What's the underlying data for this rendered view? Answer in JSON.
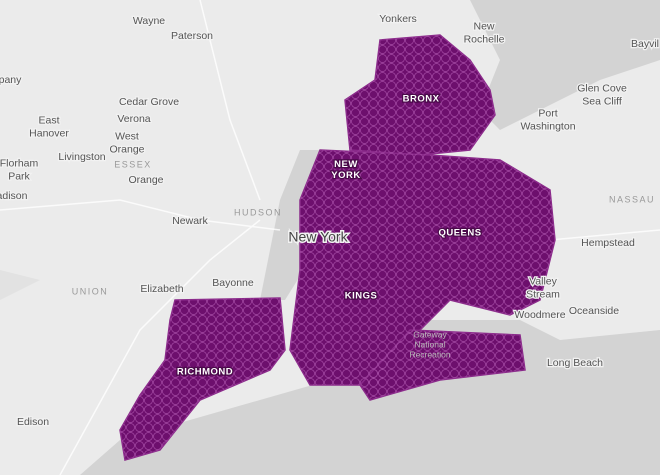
{
  "place_labels": [
    [
      "Wayne"
    ],
    [
      "Paterson"
    ],
    [
      "Yonkers"
    ],
    [
      "New",
      "Rochelle"
    ],
    [
      "Bayvil"
    ],
    [
      "pany"
    ],
    [
      "Cedar Grove"
    ],
    [
      "East",
      "Hanover"
    ],
    [
      "Verona"
    ],
    [
      "West",
      "Orange"
    ],
    [
      "Livingston"
    ],
    [
      "Florham",
      "Park"
    ],
    [
      "Orange"
    ],
    [
      "adison"
    ],
    [
      "Port",
      "Washington"
    ],
    [
      "Glen Cove",
      "Sea Cliff"
    ],
    [
      "Newark"
    ],
    [
      "Hempstead"
    ],
    [
      "Elizabeth"
    ],
    [
      "Bayonne"
    ],
    [
      "Valley",
      "Stream"
    ],
    [
      "Woodmere"
    ],
    [
      "Oceanside"
    ],
    [
      "Long Beach"
    ],
    [
      "Edison"
    ]
  ],
  "city_label": "New York",
  "county_labels": [
    "ESSEX",
    "HUDSON",
    "UNION",
    "NASSAU"
  ],
  "park_label": [
    "Gateway",
    "National",
    "Recreation"
  ],
  "borough_labels": [
    [
      "BRONX"
    ],
    [
      "NEW",
      "YORK"
    ],
    [
      "QUEENS"
    ],
    [
      "KINGS"
    ],
    [
      "RICHMOND"
    ]
  ]
}
